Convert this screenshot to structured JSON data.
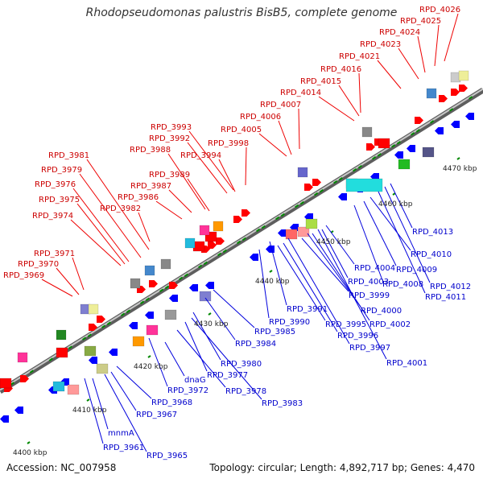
{
  "title": "Rhodopseudomonas palustris BisB5, complete genome",
  "footer": {
    "accession": "Accession: NC_007958",
    "topology": "Topology: circular; Length: 4,892,717 bp; Genes: 4,470"
  },
  "colors": {
    "backbone": "#909090",
    "plus_label": "#cc0000",
    "minus_label": "#0000cc",
    "tick": "#008800"
  },
  "scale_labels": [
    "4400 kbp",
    "4410 kbp",
    "4420 kbp",
    "4430 kbp",
    "4440 kbp",
    "4450 kbp",
    "4460 kbp",
    "4470 kbp"
  ],
  "plus_genes": [
    "RPD_3969",
    "RPD_3970",
    "RPD_3971",
    "RPD_3974",
    "RPD_3975",
    "RPD_3976",
    "RPD_3979",
    "RPD_3981",
    "RPD_3982",
    "RPD_3986",
    "RPD_3987",
    "RPD_3989",
    "RPD_3988",
    "RPD_3992",
    "RPD_3993",
    "RPD_3994",
    "RPD_3998",
    "RPD_4005",
    "RPD_4006",
    "RPD_4007",
    "RPD_4014",
    "RPD_4015",
    "RPD_4016",
    "RPD_4021",
    "RPD_4023",
    "RPD_4024",
    "RPD_4025",
    "RPD_4026"
  ],
  "minus_genes": [
    "mnmA",
    "RPD_3961",
    "RPD_3965",
    "RPD_3967",
    "RPD_3968",
    "RPD_3972",
    "dnaG",
    "RPD_3978",
    "RPD_3977",
    "RPD_3983",
    "RPD_3980",
    "RPD_3984",
    "RPD_3985",
    "RPD_3990",
    "RPD_3991",
    "RPD_3995",
    "RPD_3996",
    "RPD_3997",
    "RPD_3999",
    "RPD_4000",
    "RPD_4001",
    "RPD_4002",
    "RPD_4003",
    "RPD_4004",
    "RPD_4008",
    "RPD_4009",
    "RPD_4010",
    "RPD_4011",
    "RPD_4012",
    "RPD_4013"
  ]
}
